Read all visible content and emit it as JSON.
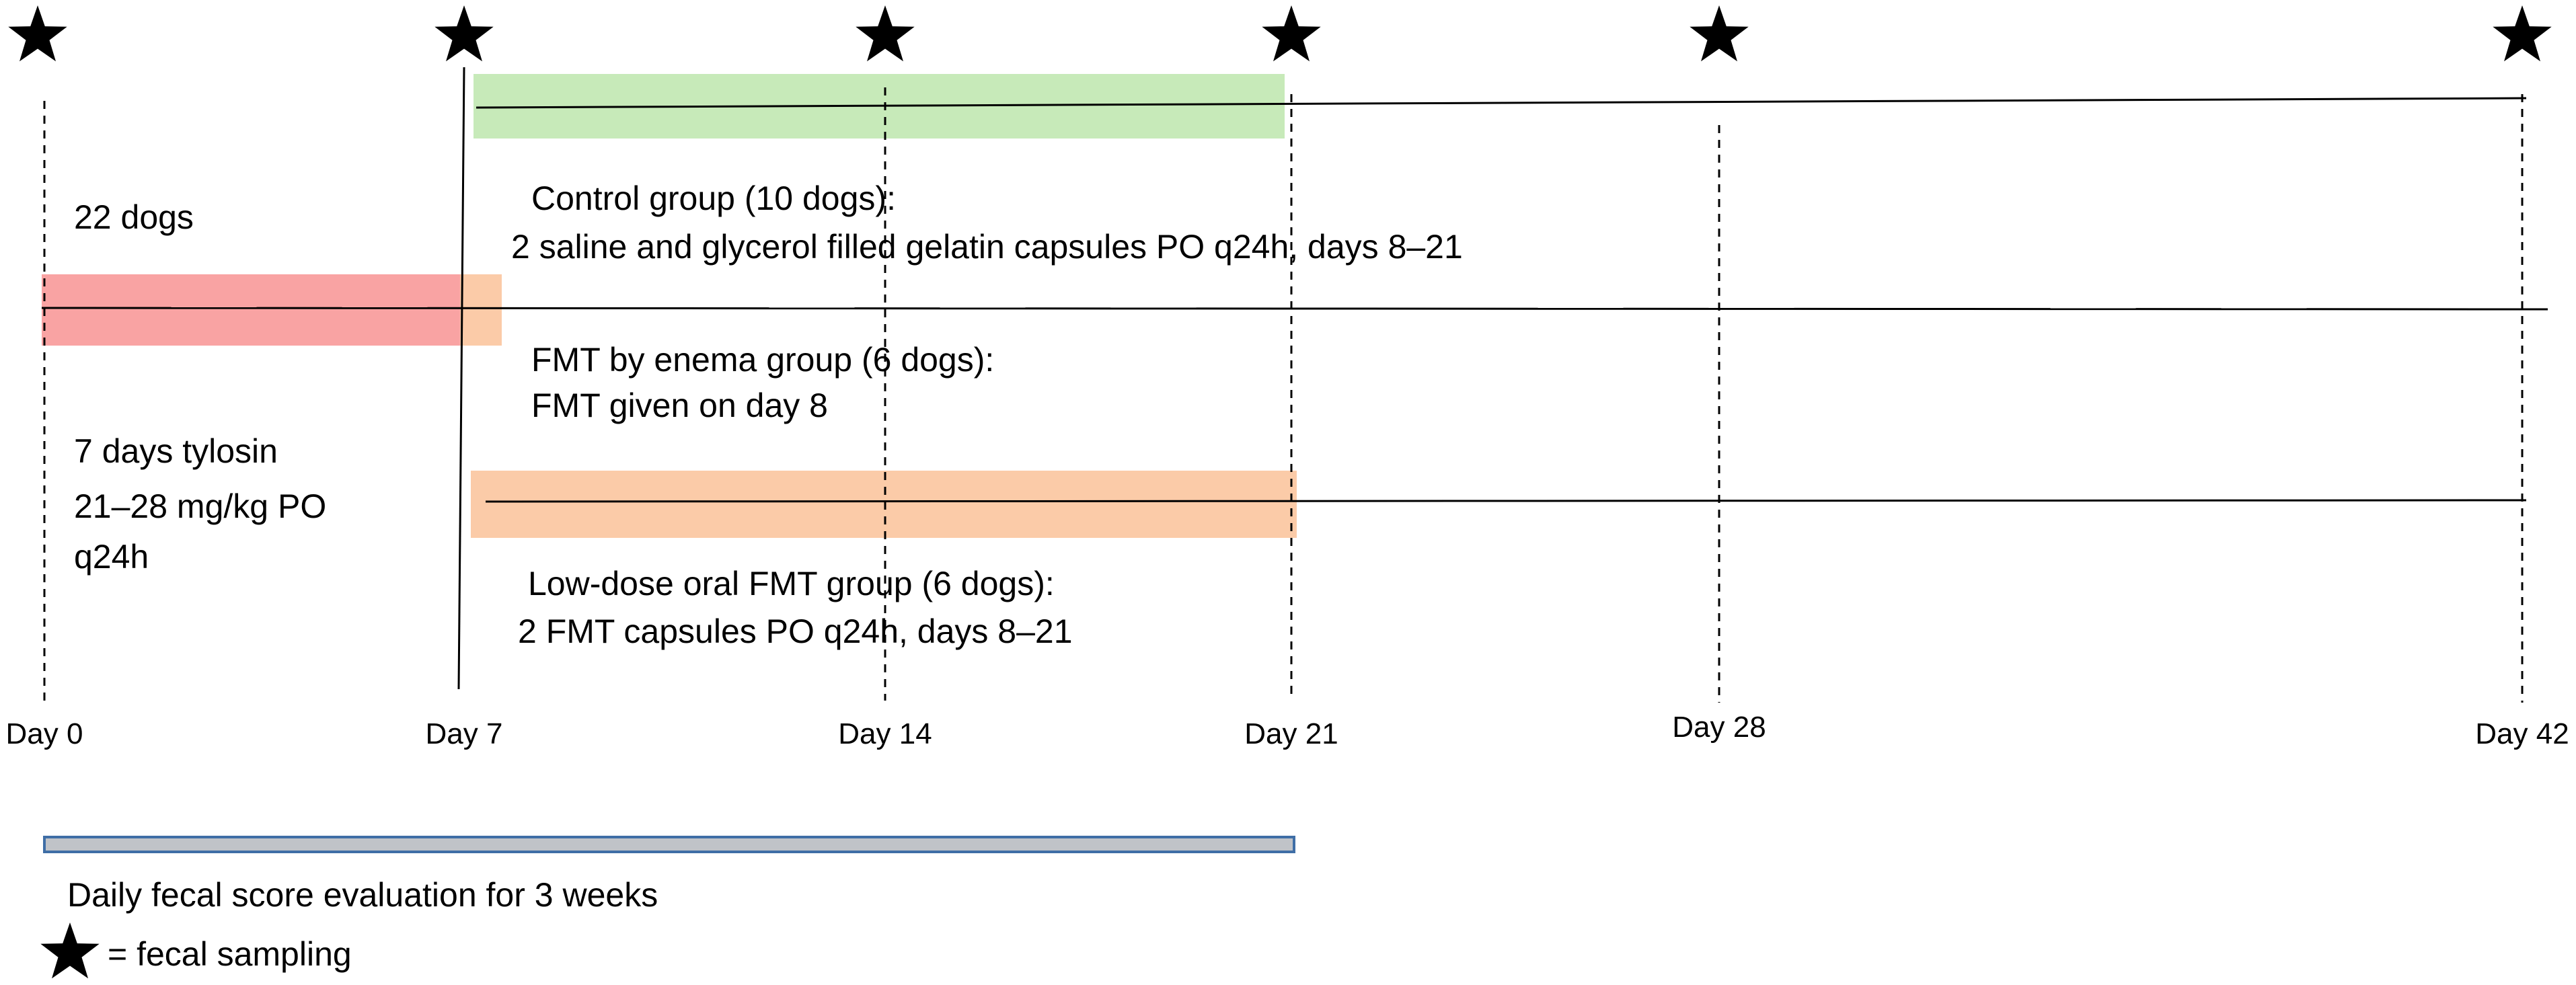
{
  "days": [
    {
      "label": "Day 0",
      "day": 0
    },
    {
      "label": "Day 7",
      "day": 7
    },
    {
      "label": "Day 14",
      "day": 14
    },
    {
      "label": "Day 21",
      "day": 21
    },
    {
      "label": "Day 28",
      "day": 28
    },
    {
      "label": "Day 42",
      "day": 42
    }
  ],
  "groups": {
    "start": {
      "text": "22 dogs"
    },
    "tylosin": {
      "lines": [
        "7 days tylosin",
        "21–28 mg/kg PO",
        "q24h"
      ]
    },
    "control": {
      "lines": [
        "Control group (10 dogs):",
        "2 saline and glycerol filled gelatin capsules PO q24h, days 8–21"
      ]
    },
    "enema": {
      "lines": [
        "FMT by enema group (6 dogs):",
        "FMT given on day 8"
      ]
    },
    "oral": {
      "lines": [
        "Low-dose oral FMT group (6 dogs):",
        "2 FMT capsules PO q24h, days 8–21"
      ]
    }
  },
  "footer": {
    "evaluation": "Daily fecal score evaluation for 3 weeks",
    "legend": "= fecal sampling"
  },
  "colors": {
    "tylosin": "#F9A3A3",
    "control": "#C7EAB9",
    "fmt": "#FBCBA8",
    "evaluation_fill": "#C0C3C8",
    "evaluation_border": "#3F6EA6",
    "star": "#000000"
  },
  "icons": {
    "sampling": "black-star-icon"
  }
}
